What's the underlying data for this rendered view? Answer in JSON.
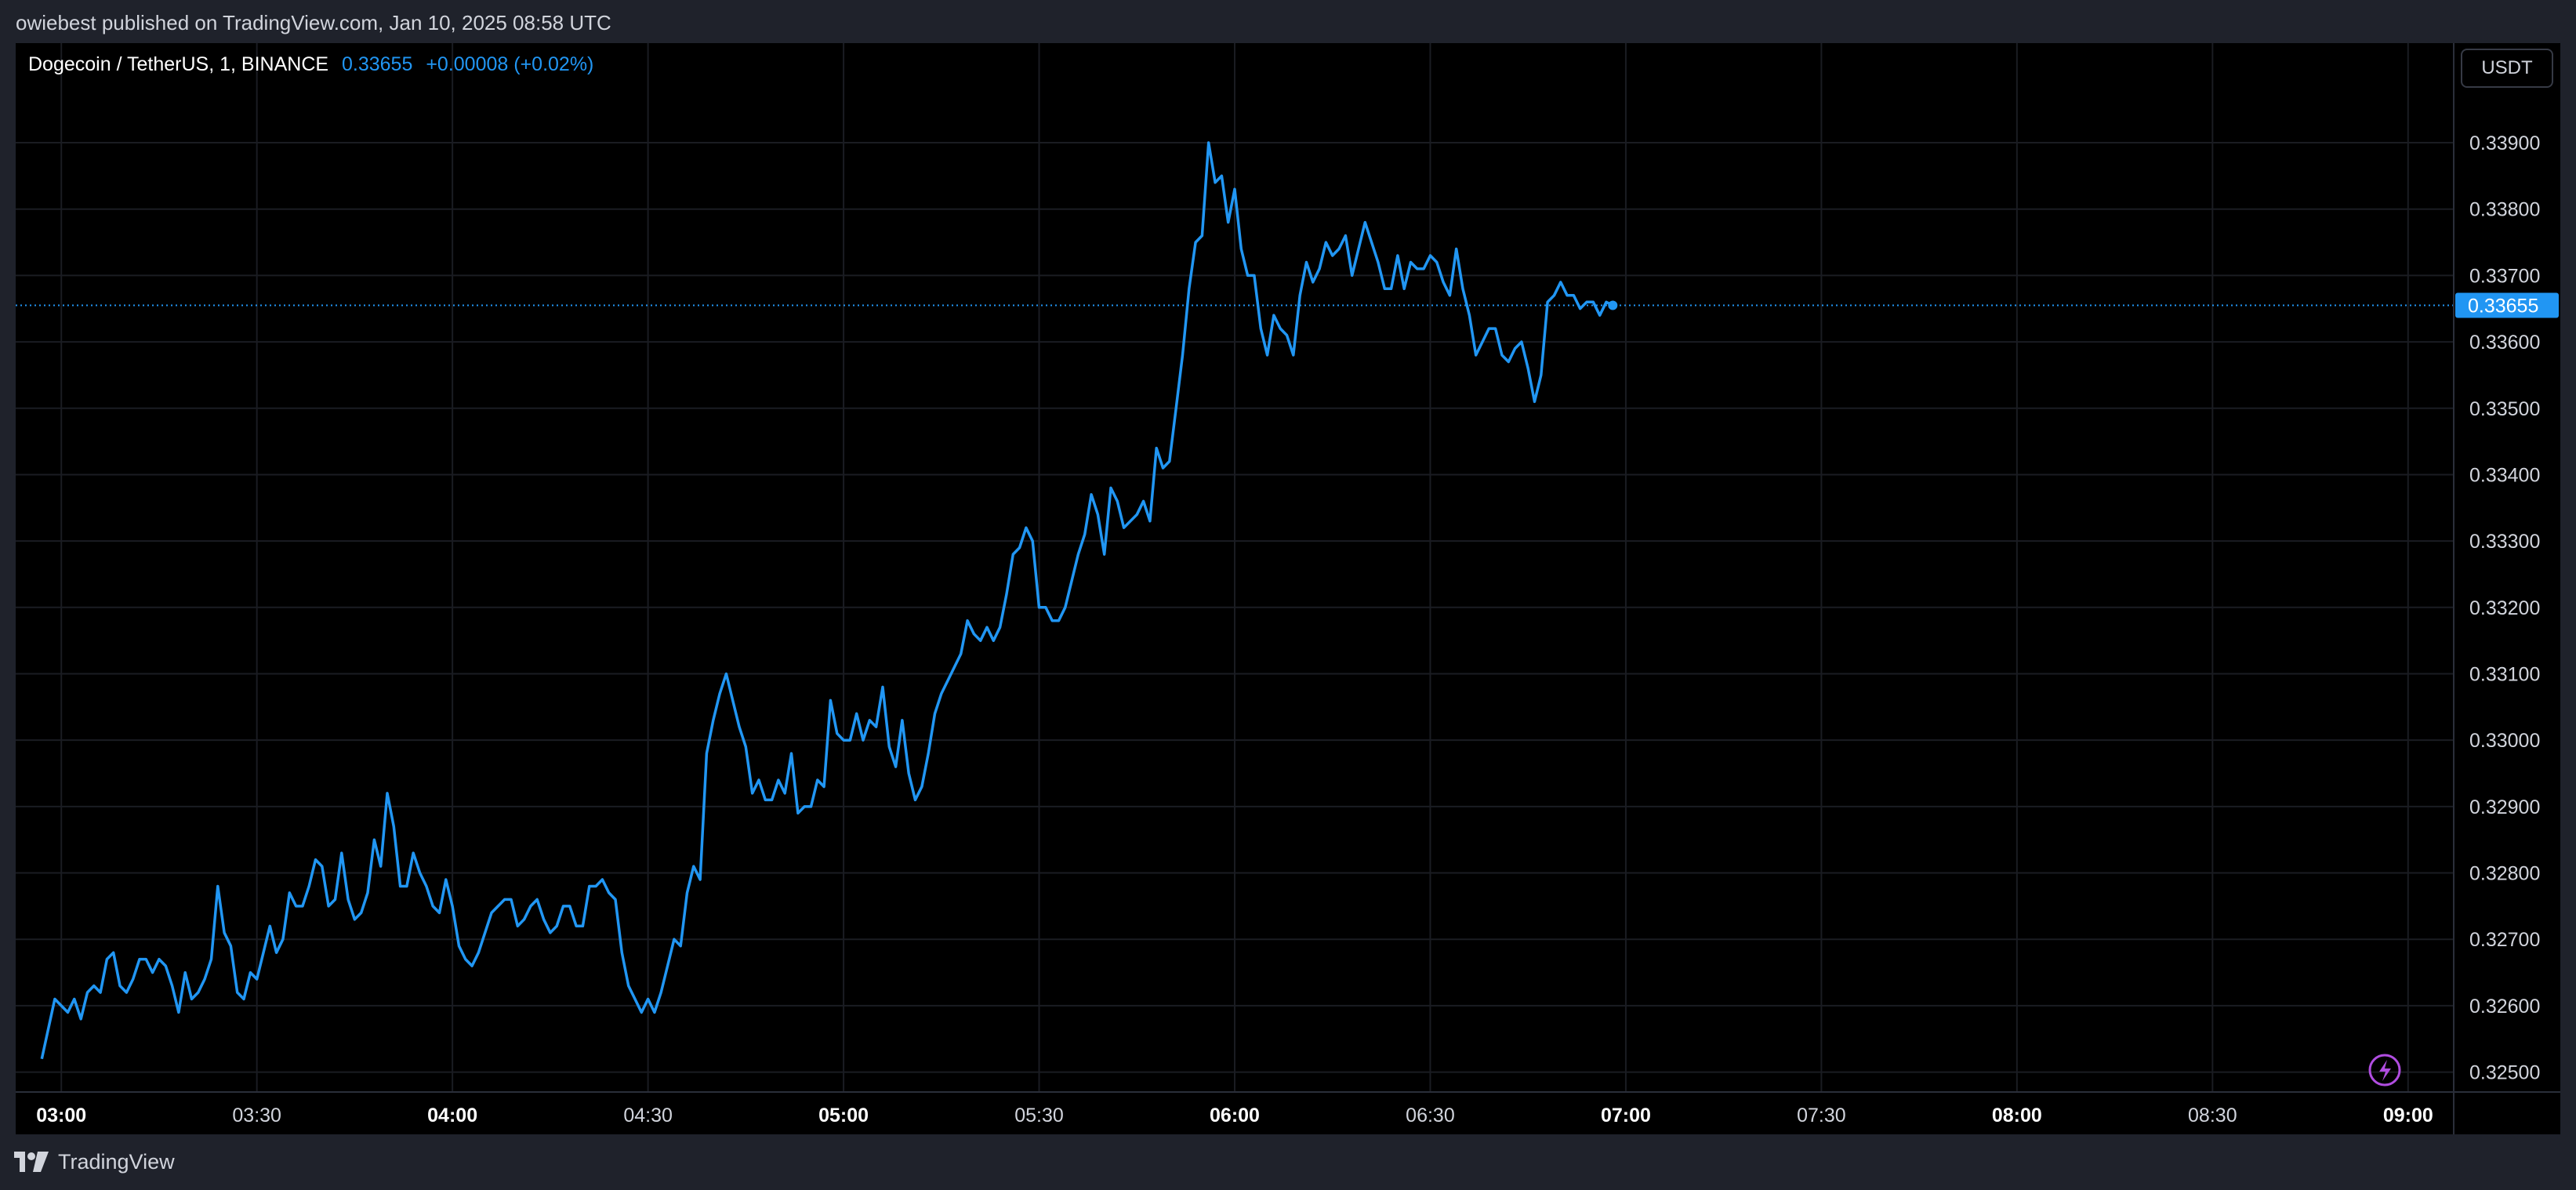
{
  "header": {
    "published_text": "owiebest published on TradingView.com, Jan 10, 2025 08:58 UTC"
  },
  "legend": {
    "symbol": "Dogecoin / TetherUS, 1, BINANCE",
    "price": "0.33655",
    "change": "+0.00008 (+0.02%)"
  },
  "currency_button": "USDT",
  "footer": {
    "brand": "TradingView"
  },
  "colors": {
    "line": "#2196f3",
    "background": "#000000",
    "grid": "#1a1c22",
    "frame": "#1f222b"
  },
  "icons": {
    "flash": "lightning-icon",
    "logo": "tradingview-logo-icon"
  },
  "chart_data": {
    "type": "line",
    "title": "",
    "xlabel": "",
    "ylabel": "",
    "grid": true,
    "ylim": [
      0.3247,
      0.3405
    ],
    "xlim": [
      "02:53",
      "09:07"
    ],
    "last_price": 0.33655,
    "last_price_label": "0.33655",
    "y_ticks": [
      {
        "value": 0.339,
        "label": "0.33900"
      },
      {
        "value": 0.338,
        "label": "0.33800"
      },
      {
        "value": 0.337,
        "label": "0.33700"
      },
      {
        "value": 0.336,
        "label": "0.33600"
      },
      {
        "value": 0.335,
        "label": "0.33500"
      },
      {
        "value": 0.334,
        "label": "0.33400"
      },
      {
        "value": 0.333,
        "label": "0.33300"
      },
      {
        "value": 0.332,
        "label": "0.33200"
      },
      {
        "value": 0.331,
        "label": "0.33100"
      },
      {
        "value": 0.33,
        "label": "0.33000"
      },
      {
        "value": 0.329,
        "label": "0.32900"
      },
      {
        "value": 0.328,
        "label": "0.32800"
      },
      {
        "value": 0.327,
        "label": "0.32700"
      },
      {
        "value": 0.326,
        "label": "0.32600"
      },
      {
        "value": 0.325,
        "label": "0.32500"
      }
    ],
    "x_ticks": [
      {
        "time": "03:00",
        "label": "03:00",
        "bold": true
      },
      {
        "time": "03:30",
        "label": "03:30",
        "bold": false
      },
      {
        "time": "04:00",
        "label": "04:00",
        "bold": true
      },
      {
        "time": "04:30",
        "label": "04:30",
        "bold": false
      },
      {
        "time": "05:00",
        "label": "05:00",
        "bold": true
      },
      {
        "time": "05:30",
        "label": "05:30",
        "bold": false
      },
      {
        "time": "06:00",
        "label": "06:00",
        "bold": true
      },
      {
        "time": "06:30",
        "label": "06:30",
        "bold": false
      },
      {
        "time": "07:00",
        "label": "07:00",
        "bold": true
      },
      {
        "time": "07:30",
        "label": "07:30",
        "bold": false
      },
      {
        "time": "08:00",
        "label": "08:00",
        "bold": true
      },
      {
        "time": "08:30",
        "label": "08:30",
        "bold": false
      },
      {
        "time": "09:00",
        "label": "09:00",
        "bold": true
      }
    ],
    "series": [
      {
        "points": [
          [
            "02:57",
            0.3252
          ],
          [
            "02:59",
            0.3261
          ],
          [
            "03:00",
            0.326
          ],
          [
            "03:01",
            0.3259
          ],
          [
            "03:02",
            0.3261
          ],
          [
            "03:03",
            0.3258
          ],
          [
            "03:04",
            0.3262
          ],
          [
            "03:05",
            0.3263
          ],
          [
            "03:06",
            0.3262
          ],
          [
            "03:07",
            0.3267
          ],
          [
            "03:08",
            0.3268
          ],
          [
            "03:09",
            0.3263
          ],
          [
            "03:10",
            0.3262
          ],
          [
            "03:11",
            0.3264
          ],
          [
            "03:12",
            0.3267
          ],
          [
            "03:13",
            0.3267
          ],
          [
            "03:14",
            0.3265
          ],
          [
            "03:15",
            0.3267
          ],
          [
            "03:16",
            0.3266
          ],
          [
            "03:17",
            0.3263
          ],
          [
            "03:18",
            0.3259
          ],
          [
            "03:19",
            0.3265
          ],
          [
            "03:20",
            0.3261
          ],
          [
            "03:21",
            0.3262
          ],
          [
            "03:22",
            0.3264
          ],
          [
            "03:23",
            0.3267
          ],
          [
            "03:24",
            0.3278
          ],
          [
            "03:25",
            0.3271
          ],
          [
            "03:26",
            0.3269
          ],
          [
            "03:27",
            0.3262
          ],
          [
            "03:28",
            0.3261
          ],
          [
            "03:29",
            0.3265
          ],
          [
            "03:30",
            0.3264
          ],
          [
            "03:31",
            0.3268
          ],
          [
            "03:32",
            0.3272
          ],
          [
            "03:33",
            0.3268
          ],
          [
            "03:34",
            0.327
          ],
          [
            "03:35",
            0.3277
          ],
          [
            "03:36",
            0.3275
          ],
          [
            "03:37",
            0.3275
          ],
          [
            "03:38",
            0.3278
          ],
          [
            "03:39",
            0.3282
          ],
          [
            "03:40",
            0.3281
          ],
          [
            "03:41",
            0.3275
          ],
          [
            "03:42",
            0.3276
          ],
          [
            "03:43",
            0.3283
          ],
          [
            "03:44",
            0.3276
          ],
          [
            "03:45",
            0.3273
          ],
          [
            "03:46",
            0.3274
          ],
          [
            "03:47",
            0.3277
          ],
          [
            "03:48",
            0.3285
          ],
          [
            "03:49",
            0.3281
          ],
          [
            "03:50",
            0.3292
          ],
          [
            "03:51",
            0.3287
          ],
          [
            "03:52",
            0.3278
          ],
          [
            "03:53",
            0.3278
          ],
          [
            "03:54",
            0.3283
          ],
          [
            "03:55",
            0.328
          ],
          [
            "03:56",
            0.3278
          ],
          [
            "03:57",
            0.3275
          ],
          [
            "03:58",
            0.3274
          ],
          [
            "03:59",
            0.3279
          ],
          [
            "04:00",
            0.3275
          ],
          [
            "04:01",
            0.3269
          ],
          [
            "04:02",
            0.3267
          ],
          [
            "04:03",
            0.3266
          ],
          [
            "04:04",
            0.3268
          ],
          [
            "04:05",
            0.3271
          ],
          [
            "04:06",
            0.3274
          ],
          [
            "04:07",
            0.3275
          ],
          [
            "04:08",
            0.3276
          ],
          [
            "04:09",
            0.3276
          ],
          [
            "04:10",
            0.3272
          ],
          [
            "04:11",
            0.3273
          ],
          [
            "04:12",
            0.3275
          ],
          [
            "04:13",
            0.3276
          ],
          [
            "04:14",
            0.3273
          ],
          [
            "04:15",
            0.3271
          ],
          [
            "04:16",
            0.3272
          ],
          [
            "04:17",
            0.3275
          ],
          [
            "04:18",
            0.3275
          ],
          [
            "04:19",
            0.3272
          ],
          [
            "04:20",
            0.3272
          ],
          [
            "04:21",
            0.3278
          ],
          [
            "04:22",
            0.3278
          ],
          [
            "04:23",
            0.3279
          ],
          [
            "04:24",
            0.3277
          ],
          [
            "04:25",
            0.3276
          ],
          [
            "04:26",
            0.3268
          ],
          [
            "04:27",
            0.3263
          ],
          [
            "04:28",
            0.3261
          ],
          [
            "04:29",
            0.3259
          ],
          [
            "04:30",
            0.3261
          ],
          [
            "04:31",
            0.3259
          ],
          [
            "04:32",
            0.3262
          ],
          [
            "04:33",
            0.3266
          ],
          [
            "04:34",
            0.327
          ],
          [
            "04:35",
            0.3269
          ],
          [
            "04:36",
            0.3277
          ],
          [
            "04:37",
            0.3281
          ],
          [
            "04:38",
            0.3279
          ],
          [
            "04:39",
            0.3298
          ],
          [
            "04:40",
            0.3303
          ],
          [
            "04:41",
            0.3307
          ],
          [
            "04:42",
            0.331
          ],
          [
            "04:43",
            0.3306
          ],
          [
            "04:44",
            0.3302
          ],
          [
            "04:45",
            0.3299
          ],
          [
            "04:46",
            0.3292
          ],
          [
            "04:47",
            0.3294
          ],
          [
            "04:48",
            0.3291
          ],
          [
            "04:49",
            0.3291
          ],
          [
            "04:50",
            0.3294
          ],
          [
            "04:51",
            0.3292
          ],
          [
            "04:52",
            0.3298
          ],
          [
            "04:53",
            0.3289
          ],
          [
            "04:54",
            0.329
          ],
          [
            "04:55",
            0.329
          ],
          [
            "04:56",
            0.3294
          ],
          [
            "04:57",
            0.3293
          ],
          [
            "04:58",
            0.3306
          ],
          [
            "04:59",
            0.3301
          ],
          [
            "05:00",
            0.33
          ],
          [
            "05:01",
            0.33
          ],
          [
            "05:02",
            0.3304
          ],
          [
            "05:03",
            0.33
          ],
          [
            "05:04",
            0.3303
          ],
          [
            "05:05",
            0.3302
          ],
          [
            "05:06",
            0.3308
          ],
          [
            "05:07",
            0.3299
          ],
          [
            "05:08",
            0.3296
          ],
          [
            "05:09",
            0.3303
          ],
          [
            "05:10",
            0.3295
          ],
          [
            "05:11",
            0.3291
          ],
          [
            "05:12",
            0.3293
          ],
          [
            "05:13",
            0.3298
          ],
          [
            "05:14",
            0.3304
          ],
          [
            "05:15",
            0.3307
          ],
          [
            "05:16",
            0.3309
          ],
          [
            "05:17",
            0.3311
          ],
          [
            "05:18",
            0.3313
          ],
          [
            "05:19",
            0.3318
          ],
          [
            "05:20",
            0.3316
          ],
          [
            "05:21",
            0.3315
          ],
          [
            "05:22",
            0.3317
          ],
          [
            "05:23",
            0.3315
          ],
          [
            "05:24",
            0.3317
          ],
          [
            "05:25",
            0.3322
          ],
          [
            "05:26",
            0.3328
          ],
          [
            "05:27",
            0.3329
          ],
          [
            "05:28",
            0.3332
          ],
          [
            "05:29",
            0.333
          ],
          [
            "05:30",
            0.332
          ],
          [
            "05:31",
            0.332
          ],
          [
            "05:32",
            0.3318
          ],
          [
            "05:33",
            0.3318
          ],
          [
            "05:34",
            0.332
          ],
          [
            "05:35",
            0.3324
          ],
          [
            "05:36",
            0.3328
          ],
          [
            "05:37",
            0.3331
          ],
          [
            "05:38",
            0.3337
          ],
          [
            "05:39",
            0.3334
          ],
          [
            "05:40",
            0.3328
          ],
          [
            "05:41",
            0.3338
          ],
          [
            "05:42",
            0.3336
          ],
          [
            "05:43",
            0.3332
          ],
          [
            "05:44",
            0.3333
          ],
          [
            "05:45",
            0.3334
          ],
          [
            "05:46",
            0.3336
          ],
          [
            "05:47",
            0.3333
          ],
          [
            "05:48",
            0.3344
          ],
          [
            "05:49",
            0.3341
          ],
          [
            "05:50",
            0.3342
          ],
          [
            "05:51",
            0.335
          ],
          [
            "05:52",
            0.3358
          ],
          [
            "05:53",
            0.3368
          ],
          [
            "05:54",
            0.3375
          ],
          [
            "05:55",
            0.3376
          ],
          [
            "05:56",
            0.339
          ],
          [
            "05:57",
            0.3384
          ],
          [
            "05:58",
            0.3385
          ],
          [
            "05:59",
            0.3378
          ],
          [
            "06:00",
            0.3383
          ],
          [
            "06:01",
            0.3374
          ],
          [
            "06:02",
            0.337
          ],
          [
            "06:03",
            0.337
          ],
          [
            "06:04",
            0.3362
          ],
          [
            "06:05",
            0.3358
          ],
          [
            "06:06",
            0.3364
          ],
          [
            "06:07",
            0.3362
          ],
          [
            "06:08",
            0.3361
          ],
          [
            "06:09",
            0.3358
          ],
          [
            "06:10",
            0.3367
          ],
          [
            "06:11",
            0.3372
          ],
          [
            "06:12",
            0.3369
          ],
          [
            "06:13",
            0.3371
          ],
          [
            "06:14",
            0.3375
          ],
          [
            "06:15",
            0.3373
          ],
          [
            "06:16",
            0.3374
          ],
          [
            "06:17",
            0.3376
          ],
          [
            "06:18",
            0.337
          ],
          [
            "06:19",
            0.3374
          ],
          [
            "06:20",
            0.3378
          ],
          [
            "06:21",
            0.3375
          ],
          [
            "06:22",
            0.3372
          ],
          [
            "06:23",
            0.3368
          ],
          [
            "06:24",
            0.3368
          ],
          [
            "06:25",
            0.3373
          ],
          [
            "06:26",
            0.3368
          ],
          [
            "06:27",
            0.3372
          ],
          [
            "06:28",
            0.3371
          ],
          [
            "06:29",
            0.3371
          ],
          [
            "06:30",
            0.3373
          ],
          [
            "06:31",
            0.3372
          ],
          [
            "06:32",
            0.3369
          ],
          [
            "06:33",
            0.3367
          ],
          [
            "06:34",
            0.3374
          ],
          [
            "06:35",
            0.3368
          ],
          [
            "06:36",
            0.3364
          ],
          [
            "06:37",
            0.3358
          ],
          [
            "06:38",
            0.336
          ],
          [
            "06:39",
            0.3362
          ],
          [
            "06:40",
            0.3362
          ],
          [
            "06:41",
            0.3358
          ],
          [
            "06:42",
            0.3357
          ],
          [
            "06:43",
            0.3359
          ],
          [
            "06:44",
            0.336
          ],
          [
            "06:45",
            0.3356
          ],
          [
            "06:46",
            0.3351
          ],
          [
            "06:47",
            0.3355
          ],
          [
            "06:48",
            0.3366
          ],
          [
            "06:49",
            0.3367
          ],
          [
            "06:50",
            0.3369
          ],
          [
            "06:51",
            0.3367
          ],
          [
            "06:52",
            0.3367
          ],
          [
            "06:53",
            0.3365
          ],
          [
            "06:54",
            0.3366
          ],
          [
            "06:55",
            0.3366
          ],
          [
            "06:56",
            0.3364
          ],
          [
            "06:57",
            0.3366
          ],
          [
            "06:58",
            0.33655
          ]
        ]
      }
    ]
  }
}
